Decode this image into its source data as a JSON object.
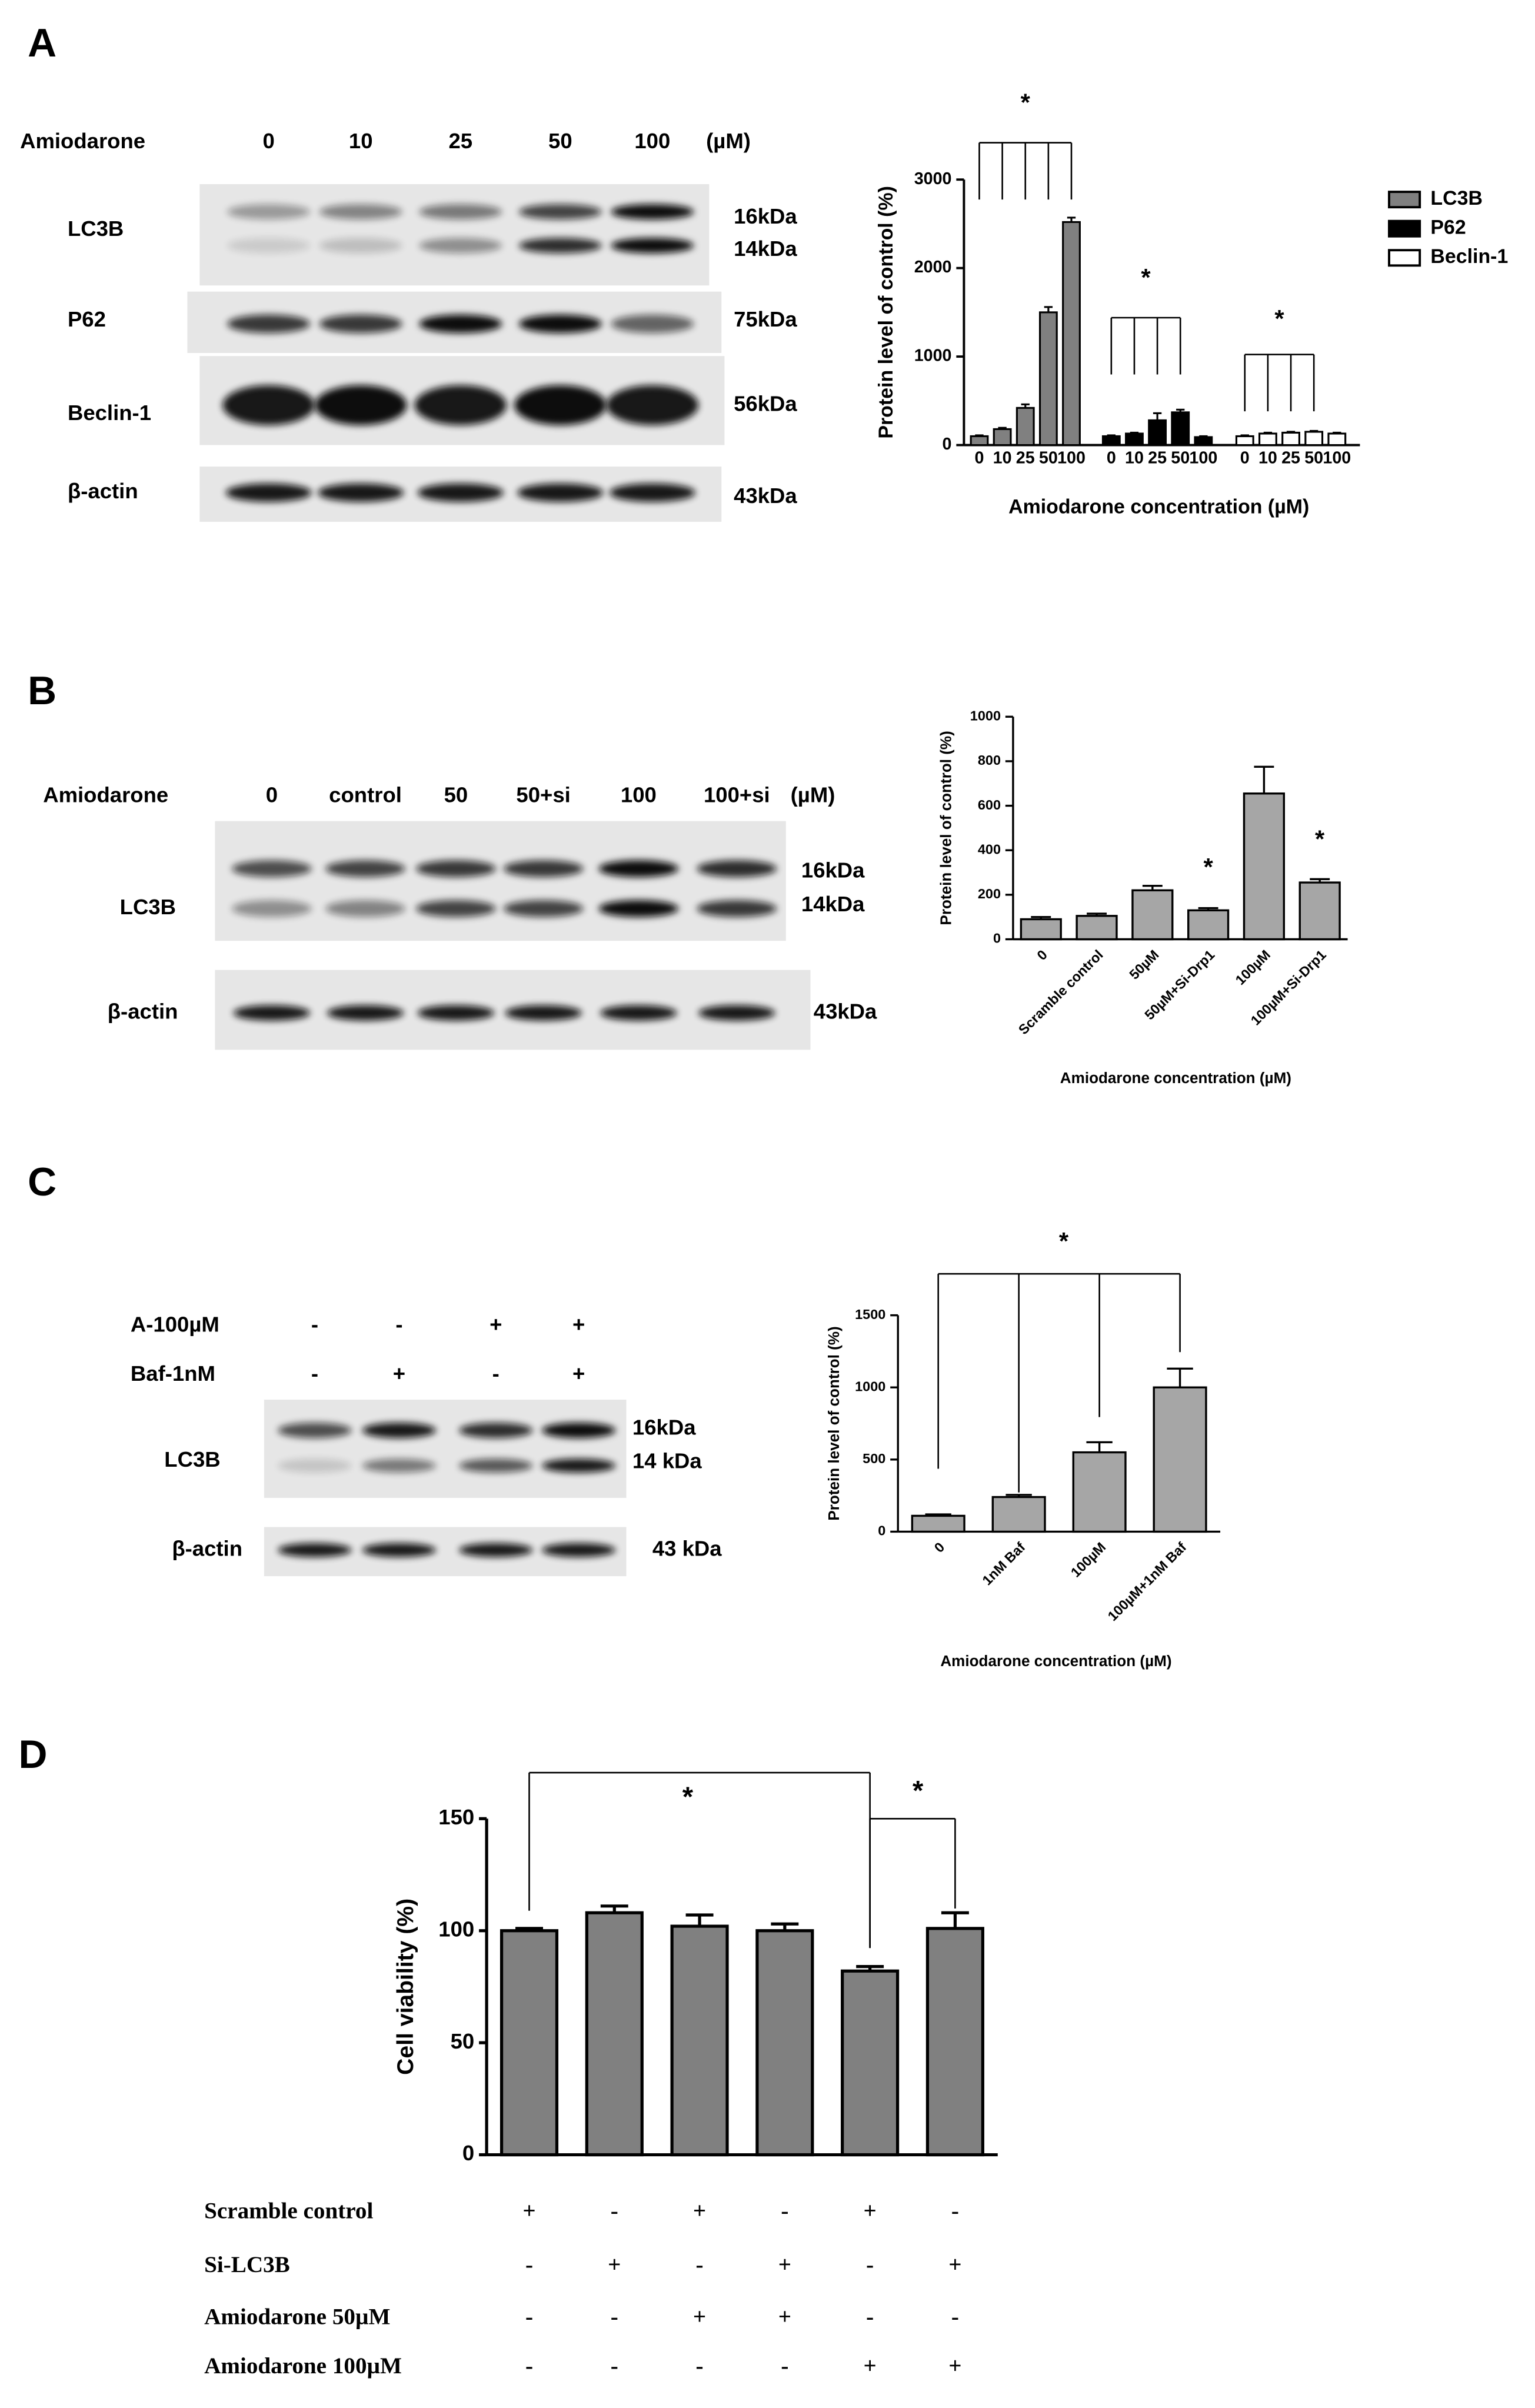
{
  "panels": [
    "A",
    "B",
    "C",
    "D"
  ],
  "blots": [
    {
      "header": "Amiodarone",
      "lanes": [
        "0",
        "10",
        "25",
        "50",
        "100"
      ],
      "unit": "(µM)",
      "rows": [
        {
          "label": "LC3B",
          "kda": [
            "16kDa",
            "14kDa"
          ]
        },
        {
          "label": "P62",
          "kda": [
            "75kDa"
          ]
        },
        {
          "label": "Beclin-1",
          "kda": [
            "56kDa"
          ]
        },
        {
          "label": "β-actin",
          "kda": [
            "43kDa"
          ]
        }
      ]
    },
    {
      "header": "Amiodarone",
      "lanes": [
        "0",
        "control",
        "50",
        "50+si",
        "100",
        "100+si"
      ],
      "unit": "(µM)",
      "rows": [
        {
          "label": "LC3B",
          "kda": [
            "16kDa",
            "14kDa"
          ]
        },
        {
          "label": "β-actin",
          "kda": [
            "43kDa"
          ]
        }
      ]
    },
    {
      "conditions": [
        {
          "label": "A-100µM",
          "signs": [
            "-",
            "-",
            "+",
            "+"
          ]
        },
        {
          "label": "Baf-1nM",
          "signs": [
            "-",
            "+",
            "-",
            "+"
          ]
        }
      ],
      "rows": [
        {
          "label": "LC3B",
          "kda": [
            "16kDa",
            "14 kDa"
          ]
        },
        {
          "label": "β-actin",
          "kda": [
            "43 kDa"
          ]
        }
      ]
    }
  ],
  "chart_data": [
    {
      "type": "grouped_bar",
      "categories": [
        "0",
        "10",
        "25",
        "50",
        "100"
      ],
      "series": [
        {
          "name": "LC3B",
          "color": "#808080",
          "values": [
            100,
            180,
            420,
            1500,
            2520
          ],
          "errors": [
            10,
            15,
            40,
            60,
            50
          ]
        },
        {
          "name": "P62",
          "color": "#000000",
          "values": [
            100,
            130,
            280,
            370,
            90
          ],
          "errors": [
            10,
            10,
            80,
            30,
            10
          ]
        },
        {
          "name": "Beclin-1",
          "color": "#ffffff",
          "values": [
            100,
            130,
            140,
            150,
            130
          ],
          "errors": [
            10,
            10,
            10,
            10,
            10
          ]
        }
      ],
      "ylim": [
        0,
        3000
      ],
      "yticks": [
        0,
        1000,
        2000,
        3000
      ],
      "ylabel": "Protein level of control (%)",
      "xlabel": "Amiodarone concentration (µM)",
      "legend": "right",
      "annotations": [
        "*",
        "*",
        "*"
      ]
    },
    {
      "type": "bar",
      "categories": [
        "0",
        "Scramble control",
        "50µM",
        "50µM+Si-Drp1",
        "100µM",
        "100µM+Si-Drp1"
      ],
      "values": [
        90,
        105,
        220,
        130,
        655,
        255
      ],
      "errors": [
        10,
        10,
        20,
        10,
        120,
        15
      ],
      "color": "#a6a6a6",
      "ylim": [
        0,
        1000
      ],
      "yticks": [
        0,
        200,
        400,
        600,
        800,
        1000
      ],
      "ylabel": "Protein level of control (%)",
      "xlabel": "Amiodarone concentration (µM)",
      "annotations": [
        "*",
        "*"
      ]
    },
    {
      "type": "bar",
      "categories": [
        "0",
        "1nM Baf",
        "100µM",
        "100µM+1nM Baf"
      ],
      "values": [
        110,
        240,
        550,
        1000
      ],
      "errors": [
        10,
        15,
        70,
        130
      ],
      "color": "#a6a6a6",
      "ylim": [
        0,
        1500
      ],
      "yticks": [
        0,
        500,
        1000,
        1500
      ],
      "ylabel": "Protein level of control (%)",
      "xlabel": "Amiodarone concentration (µM)",
      "annotations": [
        "*"
      ]
    },
    {
      "type": "bar",
      "values": [
        100,
        108,
        102,
        100,
        82,
        101
      ],
      "errors": [
        1,
        3,
        5,
        3,
        2,
        7
      ],
      "color": "#808080",
      "ylim": [
        0,
        150
      ],
      "yticks": [
        0,
        50,
        100,
        150
      ],
      "ylabel": "Cell viability (%)",
      "annotations": [
        "*",
        "*"
      ],
      "conditions": [
        {
          "label": "Scramble control",
          "signs": [
            "+",
            "-",
            "+",
            "-",
            "+",
            "-"
          ]
        },
        {
          "label": "Si-LC3B",
          "signs": [
            "-",
            "+",
            "-",
            "+",
            "-",
            "+"
          ]
        },
        {
          "label": "Amiodarone 50µM",
          "signs": [
            "-",
            "-",
            "+",
            "+",
            "-",
            "-"
          ]
        },
        {
          "label": "Amiodarone 100µM",
          "signs": [
            "-",
            "-",
            "-",
            "-",
            "+",
            "+"
          ]
        }
      ]
    }
  ]
}
